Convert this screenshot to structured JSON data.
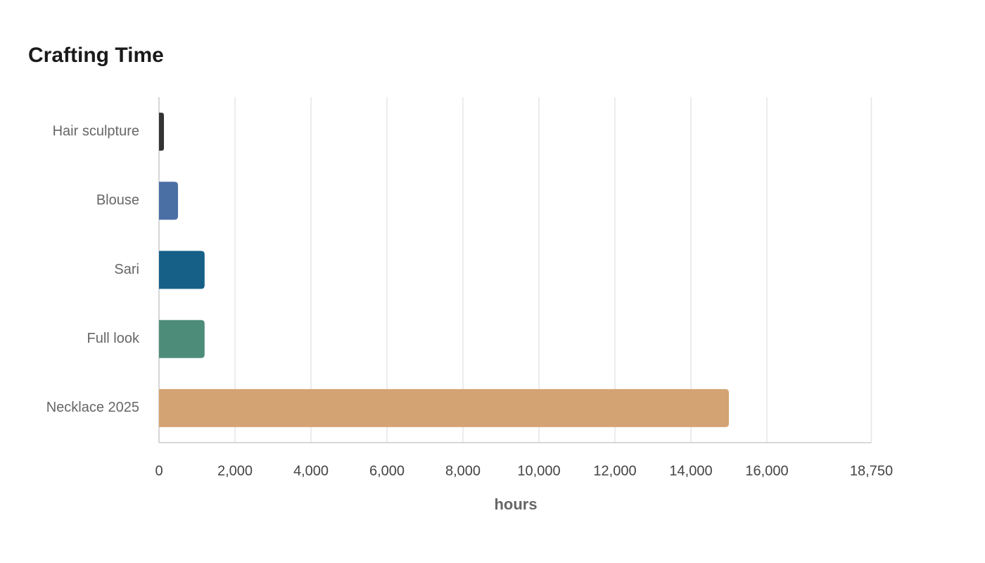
{
  "chart_data": {
    "type": "bar",
    "orientation": "horizontal",
    "title": "Crafting Time",
    "categories": [
      "Hair sculpture",
      "Blouse",
      "Sari",
      "Full look",
      "Necklace 2025"
    ],
    "values": [
      130,
      500,
      1200,
      1200,
      15000
    ],
    "colors": [
      "#333333",
      "#4a6fa5",
      "#166088",
      "#4e8c7a",
      "#d4a373"
    ],
    "xlim": [
      0,
      18750
    ],
    "xticks": [
      0,
      {
        "value": 2000,
        "label": "2,000"
      },
      {
        "value": 4000,
        "label": "4,000"
      },
      {
        "value": 6000,
        "label": "6,000"
      },
      {
        "value": 8000,
        "label": "8,000"
      },
      {
        "value": 10000,
        "label": "10,000"
      },
      {
        "value": 12000,
        "label": "12,000"
      },
      {
        "value": 14000,
        "label": "14,000"
      },
      {
        "value": 16000,
        "label": "16,000"
      },
      {
        "value": 18750,
        "label": "18,750"
      }
    ],
    "xlabel": "hours",
    "grid": true
  }
}
